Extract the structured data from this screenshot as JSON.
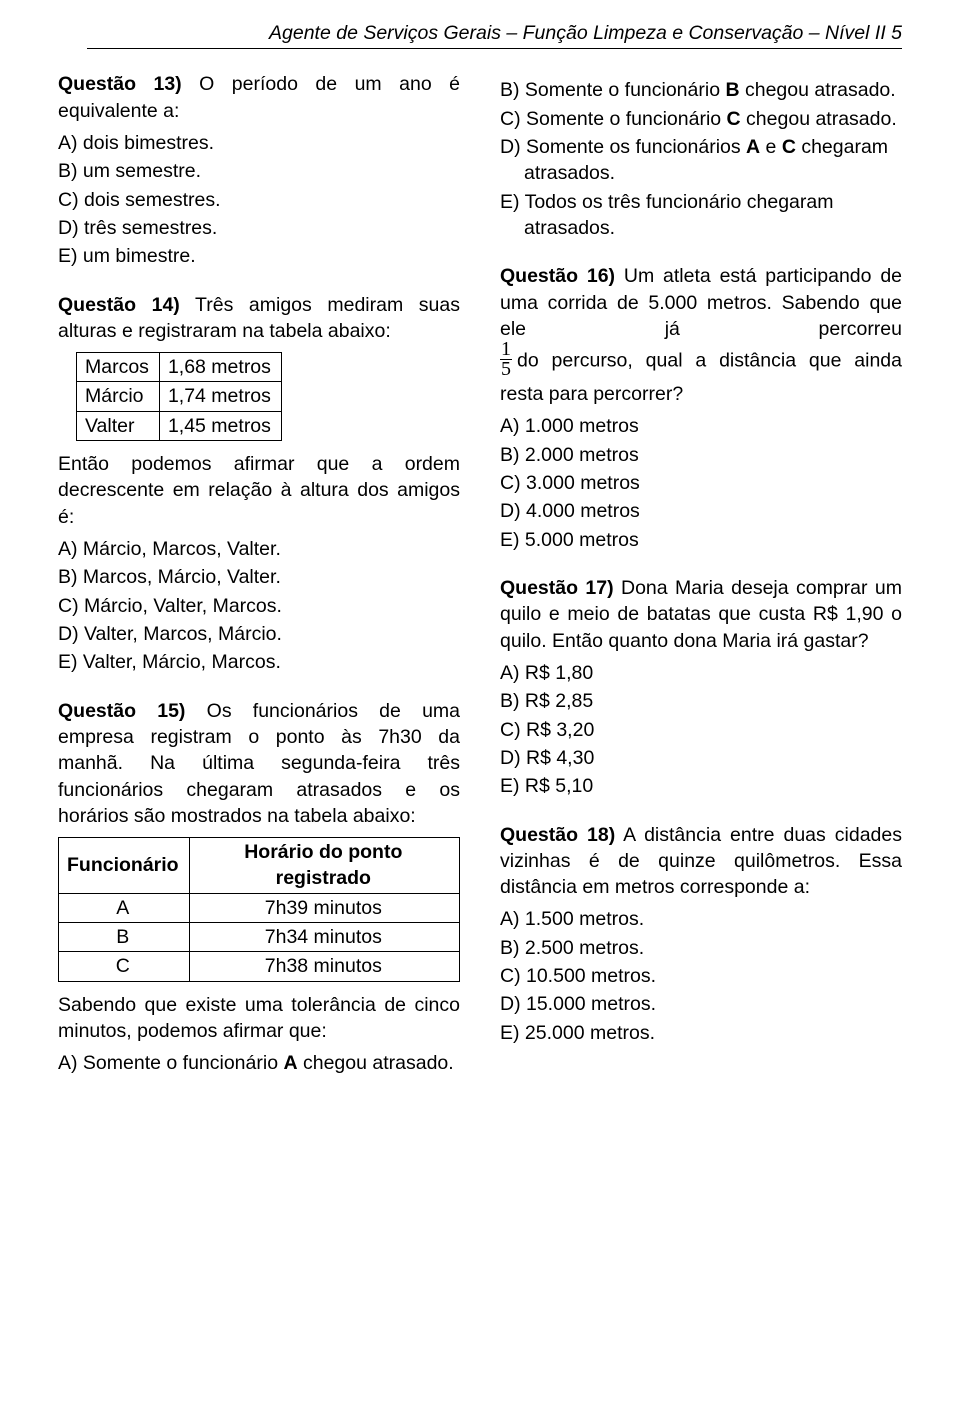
{
  "header": "Agente de Serviços Gerais – Função Limpeza e Conservação – Nível II   5",
  "q13": {
    "title": "Questão 13)",
    "stem": " O período de um ano é equivalente a:",
    "opts": [
      "A) dois bimestres.",
      "B) um semestre.",
      "C) dois semestres.",
      "D) três semestres.",
      "E) um bimestre."
    ]
  },
  "q14": {
    "title": "Questão 14)",
    "stem": " Três amigos mediram suas alturas e registraram na tabela abaixo:",
    "table": {
      "rows": [
        [
          "Marcos",
          "1,68 metros"
        ],
        [
          "Márcio",
          "1,74 metros"
        ],
        [
          "Valter",
          "1,45 metros"
        ]
      ]
    },
    "after": "Então podemos afirmar que a ordem decrescente em relação à altura dos amigos é:",
    "opts": [
      "A) Márcio, Marcos, Valter.",
      "B) Marcos, Márcio, Valter.",
      "C) Márcio, Valter, Marcos.",
      "D) Valter, Marcos, Márcio.",
      "E) Valter, Márcio, Marcos."
    ]
  },
  "q15": {
    "title": "Questão 15)",
    "stem": " Os funcionários de uma empresa registram o ponto às 7h30 da manhã. Na última segunda-feira três funcionários chegaram atrasados e os horários são mostrados na tabela abaixo:",
    "table": {
      "head": [
        "Funcionário",
        "Horário do ponto registrado"
      ],
      "rows": [
        [
          "A",
          "7h39 minutos"
        ],
        [
          "B",
          "7h34 minutos"
        ],
        [
          "C",
          "7h38 minutos"
        ]
      ]
    },
    "after": "Sabendo que existe uma tolerância de cinco minutos, podemos afirmar que:",
    "optA_pre": "A) Somente o funcionário ",
    "optA_b": "A",
    "optA_post": " chegou atrasado.",
    "optB_pre": "B) Somente o funcionário ",
    "optB_b": "B",
    "optB_post": " chegou atrasado.",
    "optC_pre": "C) Somente o funcionário ",
    "optC_b": "C",
    "optC_post": " chegou atrasado.",
    "optD_pre": "D) Somente os funcionários ",
    "optD_b1": "A",
    "optD_mid": " e ",
    "optD_b2": "C",
    "optD_post": " chegaram atrasados.",
    "optE": "E) Todos os três funcionário chegaram atrasados."
  },
  "q16": {
    "title": "Questão 16)",
    "stem1": " Um atleta está participando de uma corrida de 5.000 metros. Sabendo que ele já percorreu",
    "frac_n": "1",
    "frac_d": "5",
    "stem2": "do percurso, qual a distância que ainda resta para percorrer?",
    "opts": [
      "A) 1.000 metros",
      "B) 2.000 metros",
      "C) 3.000 metros",
      "D) 4.000 metros",
      "E) 5.000 metros"
    ]
  },
  "q17": {
    "title": "Questão 17)",
    "stem": " Dona Maria deseja comprar um quilo e meio de batatas que custa R$ 1,90 o quilo. Então quanto dona Maria irá gastar?",
    "opts": [
      "A) R$ 1,80",
      "B) R$ 2,85",
      "C) R$ 3,20",
      "D) R$ 4,30",
      "E) R$ 5,10"
    ]
  },
  "q18": {
    "title": "Questão 18)",
    "stem": " A distância entre duas cidades vizinhas é de quinze quilômetros. Essa distância em metros corresponde a:",
    "opts": [
      "A) 1.500 metros.",
      "B) 2.500 metros.",
      "C) 10.500 metros.",
      "D) 15.000 metros.",
      "E) 25.000 metros."
    ]
  }
}
